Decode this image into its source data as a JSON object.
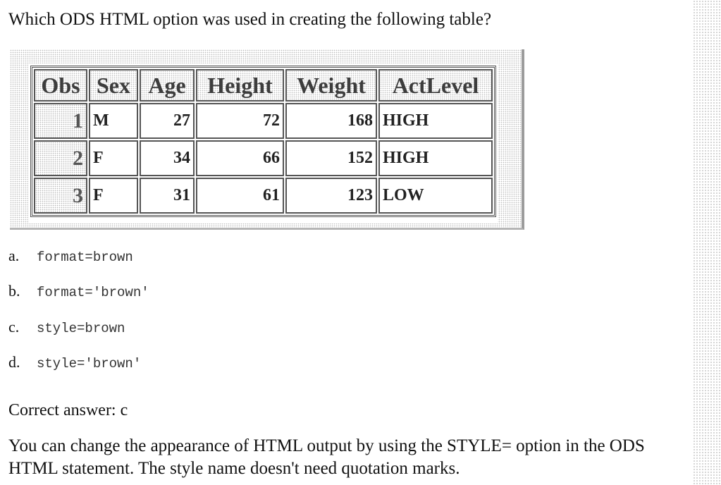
{
  "question": "Which ODS HTML option was used in creating the following table?",
  "table": {
    "headers": [
      "Obs",
      "Sex",
      "Age",
      "Height",
      "Weight",
      "ActLevel"
    ],
    "rows": [
      [
        "1",
        "M",
        "27",
        "72",
        "168",
        "HIGH"
      ],
      [
        "2",
        "F",
        "34",
        "66",
        "152",
        "HIGH"
      ],
      [
        "3",
        "F",
        "31",
        "61",
        "123",
        "LOW"
      ]
    ]
  },
  "options": [
    {
      "letter": "a.",
      "code": "format=brown"
    },
    {
      "letter": "b.",
      "code": "format='brown'"
    },
    {
      "letter": "c.",
      "code": "style=brown"
    },
    {
      "letter": "d.",
      "code": "style='brown'"
    }
  ],
  "answer": "Correct answer: c",
  "explanation": "You can change the appearance of HTML output by using the STYLE= option in the ODS HTML statement. The style name doesn't need quotation marks."
}
